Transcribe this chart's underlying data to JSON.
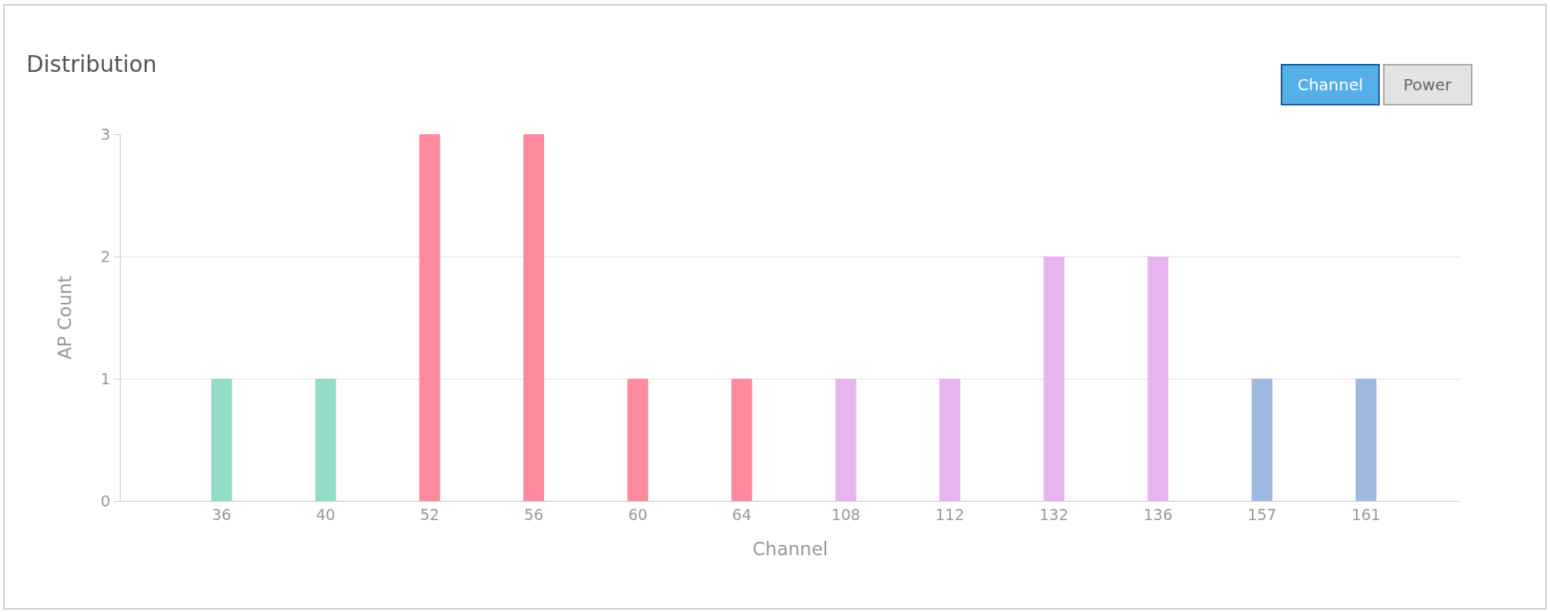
{
  "chart_data": {
    "type": "bar",
    "title": "Distribution",
    "xlabel": "Channel",
    "ylabel": "AP Count",
    "categories": [
      "36",
      "40",
      "52",
      "56",
      "60",
      "64",
      "108",
      "112",
      "132",
      "136",
      "157",
      "161"
    ],
    "values": [
      1,
      1,
      3,
      3,
      1,
      1,
      1,
      1,
      2,
      2,
      1,
      1
    ],
    "colors": [
      "#95dcc8",
      "#95dcc8",
      "#ff8a9e",
      "#ff8a9e",
      "#ff8a9e",
      "#ff8a9e",
      "#e8b4f0",
      "#e8b4f0",
      "#e8b4f0",
      "#e8b4f0",
      "#9eb8e0",
      "#9eb8e0"
    ],
    "ylim": [
      0,
      3
    ],
    "yticks": [
      0,
      1,
      2,
      3
    ],
    "grid": "y",
    "annotations": [
      "Channel",
      "Power"
    ]
  }
}
